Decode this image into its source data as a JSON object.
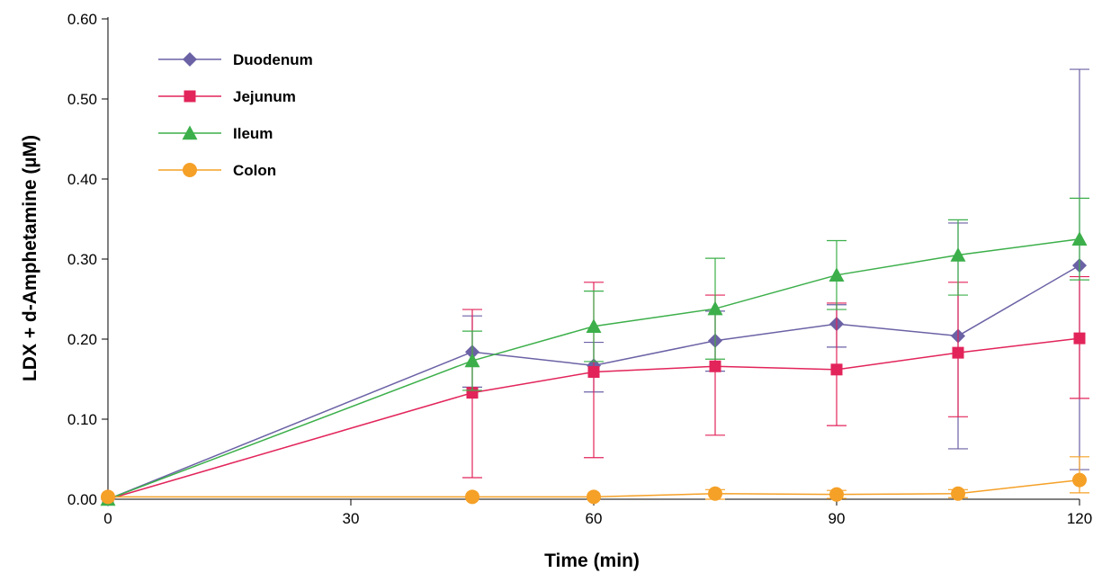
{
  "chart_data": {
    "type": "line",
    "title": "",
    "xlabel": "Time (min)",
    "ylabel": "LDX + d-Amphetamine (µM)",
    "xlim": [
      0,
      120
    ],
    "ylim": [
      0,
      0.6
    ],
    "x_ticks": [
      0,
      30,
      60,
      90,
      120
    ],
    "x_tick_labels": [
      "0",
      "30",
      "60",
      "90",
      "120"
    ],
    "y_ticks": [
      0,
      0.1,
      0.2,
      0.3,
      0.4,
      0.5,
      0.6
    ],
    "y_tick_labels": [
      "0.00",
      "0.10",
      "0.20",
      "0.30",
      "0.40",
      "0.50",
      "0.60"
    ],
    "grid": false,
    "legend_position": "top-left",
    "series": [
      {
        "name": "Duodenum",
        "color": "#6b62a5",
        "marker": "diamond",
        "x": [
          0,
          45,
          60,
          75,
          90,
          105,
          120
        ],
        "y": [
          0.0,
          0.184,
          0.167,
          0.198,
          0.219,
          0.204,
          0.292
        ],
        "err_upper": [
          0.0,
          0.229,
          0.196,
          0.235,
          0.243,
          0.345,
          0.537
        ],
        "err_lower": [
          0.0,
          0.14,
          0.134,
          0.16,
          0.19,
          0.063,
          0.037
        ]
      },
      {
        "name": "Jejunum",
        "color": "#e2245a",
        "marker": "square",
        "x": [
          0,
          45,
          60,
          75,
          90,
          105,
          120
        ],
        "y": [
          0.0,
          0.133,
          0.159,
          0.166,
          0.162,
          0.183,
          0.201
        ],
        "err_upper": [
          0.0,
          0.237,
          0.271,
          0.255,
          0.245,
          0.271,
          0.278
        ],
        "err_lower": [
          0.0,
          0.027,
          0.052,
          0.08,
          0.092,
          0.103,
          0.126
        ]
      },
      {
        "name": "Ileum",
        "color": "#3caf4a",
        "marker": "triangle",
        "x": [
          0,
          45,
          60,
          75,
          90,
          105,
          120
        ],
        "y": [
          0.0,
          0.173,
          0.216,
          0.238,
          0.28,
          0.305,
          0.325
        ],
        "err_upper": [
          0.0,
          0.21,
          0.26,
          0.301,
          0.323,
          0.349,
          0.376
        ],
        "err_lower": [
          0.0,
          0.136,
          0.172,
          0.175,
          0.237,
          0.255,
          0.274
        ]
      },
      {
        "name": "Colon",
        "color": "#f5a027",
        "marker": "circle",
        "x": [
          0,
          45,
          60,
          75,
          90,
          105,
          120
        ],
        "y": [
          0.003,
          0.003,
          0.003,
          0.007,
          0.006,
          0.007,
          0.024
        ],
        "err_upper": [
          0.003,
          0.003,
          0.003,
          0.012,
          0.011,
          0.012,
          0.053
        ],
        "err_lower": [
          0.003,
          0.003,
          0.003,
          0.0,
          0.001,
          0.002,
          0.008
        ]
      }
    ]
  }
}
